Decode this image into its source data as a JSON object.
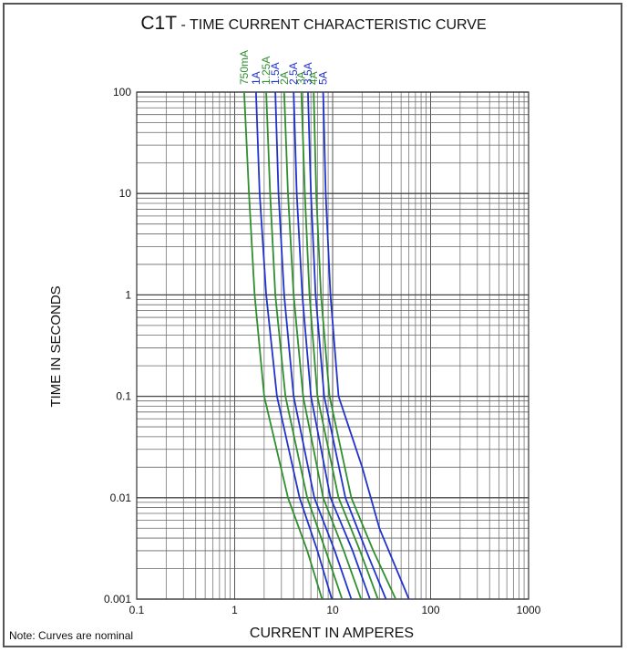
{
  "title": "C1T",
  "subtitle": "- TIME CURRENT CHARACTERISTIC CURVE",
  "note": "Note: Curves are nominal",
  "chart_data": {
    "type": "line",
    "xlabel": "CURRENT IN AMPERES",
    "ylabel": "TIME IN SECONDS",
    "x_scale": "log",
    "y_scale": "log",
    "xlim": [
      0.1,
      1000
    ],
    "ylim": [
      0.001,
      100
    ],
    "grid": true,
    "x_ticks": [
      "0.1",
      "1",
      "10",
      "100",
      "1000"
    ],
    "y_ticks": [
      "0.001",
      "0.01",
      "0.1",
      "1",
      "10",
      "100"
    ],
    "colors": {
      "green": "#2f8f2f",
      "blue": "#2233cc"
    },
    "series": [
      {
        "name": "750mA",
        "color": "green",
        "points": [
          [
            1.25,
            100
          ],
          [
            1.4,
            10
          ],
          [
            1.6,
            1
          ],
          [
            2.0,
            0.1
          ],
          [
            3.5,
            0.01
          ],
          [
            5.5,
            0.003
          ],
          [
            7.8,
            0.001
          ]
        ]
      },
      {
        "name": "1A",
        "color": "blue",
        "points": [
          [
            1.65,
            100
          ],
          [
            1.8,
            10
          ],
          [
            2.1,
            1
          ],
          [
            2.7,
            0.1
          ],
          [
            4.6,
            0.01
          ],
          [
            7.0,
            0.003
          ],
          [
            9.8,
            0.001
          ]
        ]
      },
      {
        "name": "1.25A",
        "color": "green",
        "points": [
          [
            2.1,
            100
          ],
          [
            2.3,
            10
          ],
          [
            2.6,
            1
          ],
          [
            3.3,
            0.1
          ],
          [
            5.5,
            0.01
          ],
          [
            8.5,
            0.003
          ],
          [
            12.5,
            0.001
          ]
        ]
      },
      {
        "name": "1.5A",
        "color": "blue",
        "points": [
          [
            2.6,
            100
          ],
          [
            2.8,
            10
          ],
          [
            3.2,
            1
          ],
          [
            4.0,
            0.1
          ],
          [
            6.5,
            0.01
          ],
          [
            10.5,
            0.003
          ],
          [
            15.5,
            0.001
          ]
        ]
      },
      {
        "name": "2A",
        "color": "green",
        "points": [
          [
            3.2,
            100
          ],
          [
            3.5,
            10
          ],
          [
            4.0,
            1
          ],
          [
            5.0,
            0.1
          ],
          [
            8.0,
            0.01
          ],
          [
            13.0,
            0.003
          ],
          [
            19.5,
            0.001
          ]
        ]
      },
      {
        "name": "2.5A",
        "color": "blue",
        "points": [
          [
            4.0,
            100
          ],
          [
            4.3,
            10
          ],
          [
            4.9,
            1
          ],
          [
            6.0,
            0.1
          ],
          [
            9.5,
            0.01
          ],
          [
            16.0,
            0.003
          ],
          [
            24.0,
            0.001
          ]
        ]
      },
      {
        "name": "3A",
        "color": "green",
        "points": [
          [
            4.8,
            100
          ],
          [
            5.2,
            10
          ],
          [
            5.8,
            1
          ],
          [
            7.0,
            0.1
          ],
          [
            11.5,
            0.01
          ],
          [
            19.0,
            0.003
          ],
          [
            29.0,
            0.001
          ]
        ]
      },
      {
        "name": "3.5A",
        "color": "blue",
        "points": [
          [
            5.6,
            100
          ],
          [
            6.0,
            10
          ],
          [
            6.7,
            1
          ],
          [
            8.2,
            0.1
          ],
          [
            13.5,
            0.01
          ],
          [
            22.0,
            0.003
          ],
          [
            35.0,
            0.001
          ]
        ]
      },
      {
        "name": "4A",
        "color": "green",
        "points": [
          [
            6.4,
            100
          ],
          [
            6.8,
            10
          ],
          [
            7.6,
            1
          ],
          [
            9.3,
            0.1
          ],
          [
            15.5,
            0.01
          ],
          [
            26.0,
            0.003
          ],
          [
            44.0,
            0.001
          ]
        ]
      },
      {
        "name": "5A",
        "color": "blue",
        "points": [
          [
            8.0,
            100
          ],
          [
            8.5,
            10
          ],
          [
            9.5,
            1
          ],
          [
            11.5,
            0.1
          ],
          [
            20.0,
            0.02
          ],
          [
            30.0,
            0.005
          ],
          [
            60.0,
            0.001
          ]
        ]
      }
    ]
  }
}
